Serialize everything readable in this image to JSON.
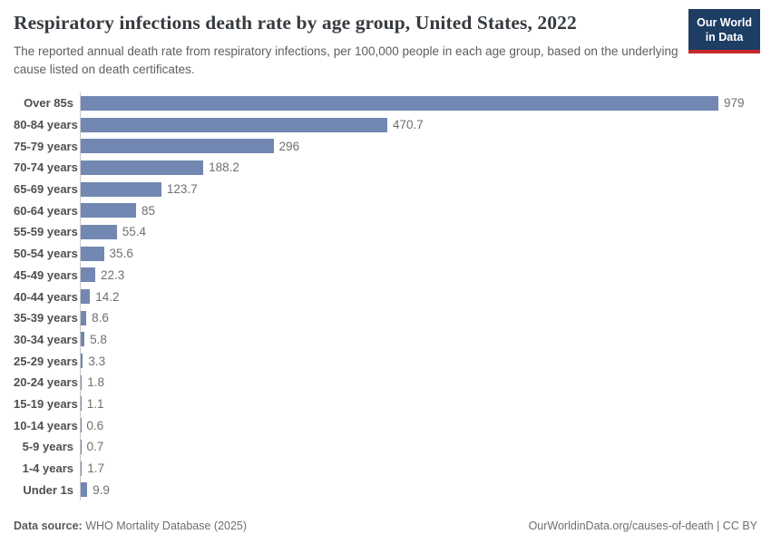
{
  "header": {
    "title": "Respiratory infections death rate by age group, United States, 2022",
    "subtitle": "The reported annual death rate from respiratory infections, per 100,000 people in each age group, based on the underlying cause listed on death certificates.",
    "logo_line1": "Our World",
    "logo_line2": "in Data"
  },
  "chart_data": {
    "type": "bar",
    "orientation": "horizontal",
    "title": "Respiratory infections death rate by age group, United States, 2022",
    "categories": [
      "Over 85s",
      "80-84 years",
      "75-79 years",
      "70-74 years",
      "65-69 years",
      "60-64 years",
      "55-59 years",
      "50-54 years",
      "45-49 years",
      "40-44 years",
      "35-39 years",
      "30-34 years",
      "25-29 years",
      "20-24 years",
      "15-19 years",
      "10-14 years",
      "5-9 years",
      "1-4 years",
      "Under 1s"
    ],
    "values": [
      979,
      470.7,
      296,
      188.2,
      123.7,
      85,
      55.4,
      35.6,
      22.3,
      14.2,
      8.6,
      5.8,
      3.3,
      1.8,
      1.1,
      0.6,
      0.7,
      1.7,
      9.9
    ],
    "xlabel": "",
    "ylabel": "",
    "xlim": [
      0,
      979
    ],
    "grid": false,
    "legend": false,
    "data_labels": true
  },
  "colors": {
    "bar": "#7288b2",
    "logo-bg": "#1d3d63",
    "logo-strip": "#c7292b"
  },
  "footer": {
    "source_label": "Data source:",
    "source_value": " WHO Mortality Database (2025)",
    "attribution": "OurWorldinData.org/causes-of-death | CC BY"
  }
}
